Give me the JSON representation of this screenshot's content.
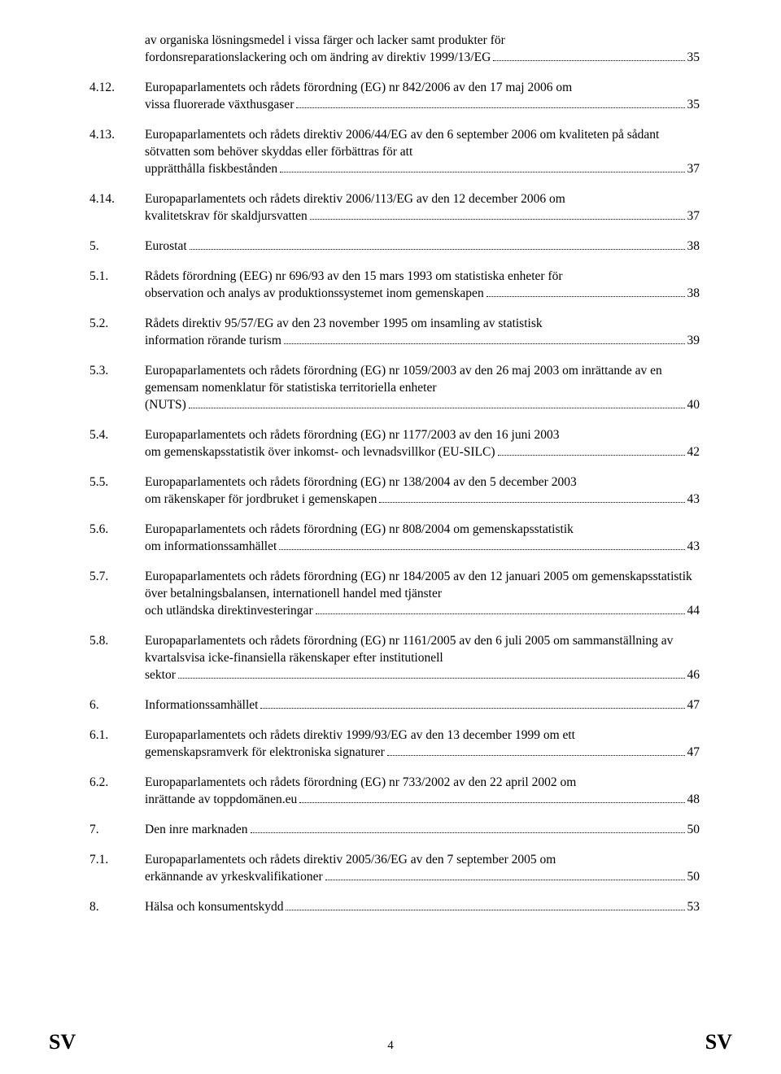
{
  "page_number": "4",
  "footer_left": "SV",
  "footer_right": "SV",
  "font_family": "Times New Roman",
  "body_fontsize": 15.5,
  "text_color": "#000000",
  "background_color": "#ffffff",
  "leader_style": "dotted",
  "entries": [
    {
      "num": "",
      "pre": "av organiska lösningsmedel i vissa färger och lacker samt produkter för",
      "last": "fordonsreparationslackering och om ändring av direktiv 1999/13/EG",
      "page": "35"
    },
    {
      "num": "4.12.",
      "pre": "Europaparlamentets och rådets förordning (EG) nr 842/2006 av den 17 maj 2006 om",
      "last": "vissa fluorerade växthusgaser",
      "page": "35"
    },
    {
      "num": "4.13.",
      "pre": "Europaparlamentets och rådets direktiv 2006/44/EG av den 6 september 2006 om kvaliteten på sådant sötvatten som behöver skyddas eller förbättras för att",
      "last": "upprätthålla fiskbestånden",
      "page": "37"
    },
    {
      "num": "4.14.",
      "pre": "Europaparlamentets och rådets direktiv 2006/113/EG av den 12 december 2006 om",
      "last": "kvalitetskrav för skaldjursvatten",
      "page": "37"
    },
    {
      "num": "5.",
      "pre": "",
      "last": "Eurostat",
      "page": "38"
    },
    {
      "num": "5.1.",
      "pre": "Rådets förordning (EEG) nr 696/93 av den 15 mars 1993 om statistiska enheter för",
      "last": "observation och analys av produktionssystemet inom gemenskapen",
      "page": "38"
    },
    {
      "num": "5.2.",
      "pre": "Rådets direktiv 95/57/EG av den 23 november 1995 om insamling av statistisk",
      "last": "information rörande turism",
      "page": "39"
    },
    {
      "num": "5.3.",
      "pre": "Europaparlamentets och rådets förordning (EG) nr 1059/2003 av den 26 maj 2003 om inrättande av en gemensam nomenklatur för statistiska territoriella enheter",
      "last": "(NUTS)",
      "page": "40"
    },
    {
      "num": "5.4.",
      "pre": "Europaparlamentets och rådets förordning (EG) nr 1177/2003 av den 16 juni 2003",
      "last": "om gemenskapsstatistik över inkomst- och levnadsvillkor (EU-SILC)",
      "page": "42"
    },
    {
      "num": "5.5.",
      "pre": "Europaparlamentets och rådets förordning (EG) nr 138/2004 av den 5 december 2003",
      "last": "om räkenskaper för jordbruket i gemenskapen",
      "page": "43"
    },
    {
      "num": "5.6.",
      "pre": "Europaparlamentets och rådets förordning (EG) nr 808/2004 om gemenskapsstatistik",
      "last": "om informationssamhället",
      "page": "43"
    },
    {
      "num": "5.7.",
      "pre": "Europaparlamentets och rådets förordning (EG) nr 184/2005 av den 12 januari 2005 om gemenskapsstatistik över betalningsbalansen, internationell handel med tjänster",
      "last": "och utländska direktinvesteringar",
      "page": "44"
    },
    {
      "num": "5.8.",
      "pre": "Europaparlamentets och rådets förordning (EG) nr 1161/2005 av den 6 juli 2005 om sammanställning av kvartalsvisa icke-finansiella räkenskaper efter institutionell",
      "last": "sektor",
      "page": "46"
    },
    {
      "num": "6.",
      "pre": "",
      "last": "Informationssamhället",
      "page": "47"
    },
    {
      "num": "6.1.",
      "pre": "Europaparlamentets och rådets direktiv 1999/93/EG av den 13 december 1999 om ett",
      "last": "gemenskapsramverk för elektroniska signaturer",
      "page": "47"
    },
    {
      "num": "6.2.",
      "pre": "Europaparlamentets och rådets förordning (EG) nr 733/2002 av den 22 april 2002 om",
      "last": "inrättande av toppdomänen.eu",
      "page": "48"
    },
    {
      "num": "7.",
      "pre": "",
      "last": "Den inre marknaden",
      "page": "50"
    },
    {
      "num": "7.1.",
      "pre": "Europaparlamentets och rådets direktiv 2005/36/EG av den 7 september 2005 om",
      "last": "erkännande av yrkeskvalifikationer",
      "page": "50"
    },
    {
      "num": "8.",
      "pre": "",
      "last": "Hälsa och konsumentskydd",
      "page": "53"
    }
  ]
}
